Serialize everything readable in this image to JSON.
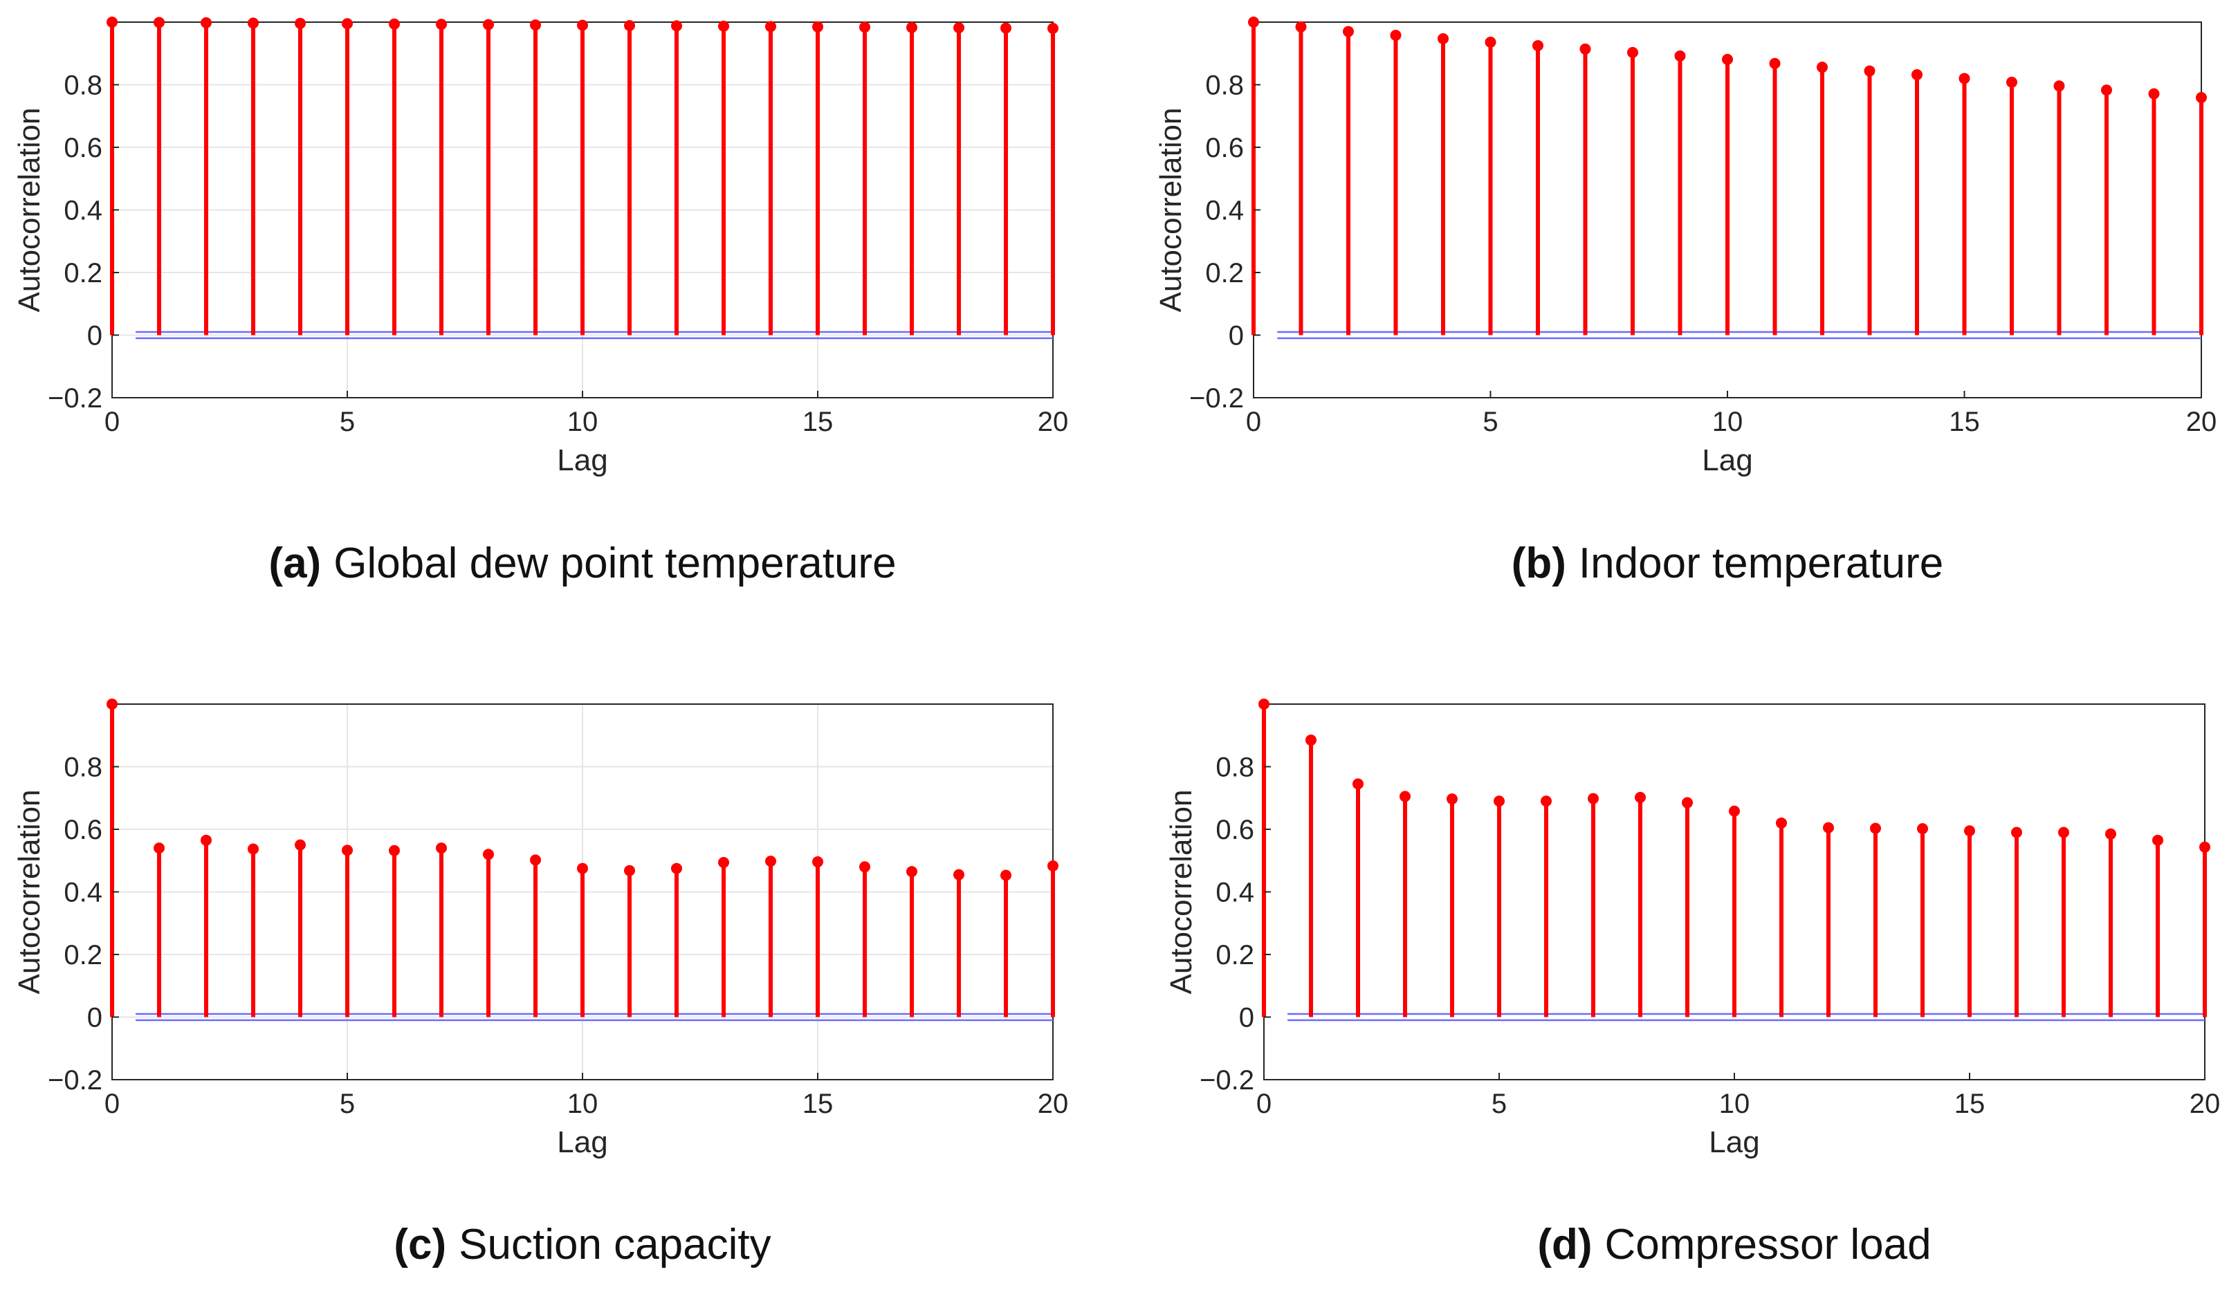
{
  "colors": {
    "stem": "#ff0000",
    "bound": "#6b6bff",
    "grid": "#e6e6e6",
    "axis": "#262626"
  },
  "chart_data": [
    {
      "id": "a",
      "type": "stem",
      "caption_letter": "(a)",
      "caption": "Global dew point temperature",
      "xlabel": "Lag",
      "ylabel": "Autocorrelation",
      "xlim": [
        0,
        20
      ],
      "ylim": [
        -0.2,
        1.0
      ],
      "xticks": [
        "0",
        "5",
        "10",
        "15",
        "20"
      ],
      "yticks": [
        "−0.2",
        "0",
        "0.2",
        "0.4",
        "0.6",
        "0.8"
      ],
      "grid": true,
      "confidence_bound": 0.01,
      "lags": [
        0,
        1,
        2,
        3,
        4,
        5,
        6,
        7,
        8,
        9,
        10,
        11,
        12,
        13,
        14,
        15,
        16,
        17,
        18,
        19,
        20
      ],
      "values": [
        1.0,
        0.999,
        0.998,
        0.997,
        0.996,
        0.995,
        0.994,
        0.993,
        0.992,
        0.991,
        0.99,
        0.989,
        0.988,
        0.987,
        0.986,
        0.985,
        0.984,
        0.983,
        0.982,
        0.981,
        0.98
      ]
    },
    {
      "id": "b",
      "type": "stem",
      "caption_letter": "(b)",
      "caption": "Indoor temperature",
      "xlabel": "Lag",
      "ylabel": "Autocorrelation",
      "xlim": [
        0,
        20
      ],
      "ylim": [
        -0.2,
        1.0
      ],
      "xticks": [
        "0",
        "5",
        "10",
        "15",
        "20"
      ],
      "yticks": [
        "−0.2",
        "0",
        "0.2",
        "0.4",
        "0.6",
        "0.8"
      ],
      "grid": false,
      "confidence_bound": 0.01,
      "lags": [
        0,
        1,
        2,
        3,
        4,
        5,
        6,
        7,
        8,
        9,
        10,
        11,
        12,
        13,
        14,
        15,
        16,
        17,
        18,
        19,
        20
      ],
      "values": [
        1.0,
        0.985,
        0.97,
        0.958,
        0.947,
        0.936,
        0.925,
        0.914,
        0.903,
        0.892,
        0.881,
        0.868,
        0.856,
        0.844,
        0.832,
        0.82,
        0.808,
        0.796,
        0.783,
        0.771,
        0.759
      ]
    },
    {
      "id": "c",
      "type": "stem",
      "caption_letter": "(c)",
      "caption": "Suction capacity",
      "xlabel": "Lag",
      "ylabel": "Autocorrelation",
      "xlim": [
        0,
        20
      ],
      "ylim": [
        -0.2,
        1.0
      ],
      "xticks": [
        "0",
        "5",
        "10",
        "15",
        "20"
      ],
      "yticks": [
        "−0.2",
        "0",
        "0.2",
        "0.4",
        "0.6",
        "0.8"
      ],
      "grid": true,
      "confidence_bound": 0.01,
      "lags": [
        0,
        1,
        2,
        3,
        4,
        5,
        6,
        7,
        8,
        9,
        10,
        11,
        12,
        13,
        14,
        15,
        16,
        17,
        18,
        19,
        20
      ],
      "values": [
        1.0,
        0.54,
        0.565,
        0.537,
        0.55,
        0.533,
        0.532,
        0.54,
        0.52,
        0.502,
        0.475,
        0.468,
        0.475,
        0.494,
        0.498,
        0.496,
        0.48,
        0.465,
        0.455,
        0.453,
        0.483
      ]
    },
    {
      "id": "d",
      "type": "stem",
      "caption_letter": "(d)",
      "caption": "Compressor load",
      "xlabel": "Lag",
      "ylabel": "Autocorrelation",
      "xlim": [
        0,
        20
      ],
      "ylim": [
        -0.2,
        1.0
      ],
      "xticks": [
        "0",
        "5",
        "10",
        "15",
        "20"
      ],
      "yticks": [
        "−0.2",
        "0",
        "0.2",
        "0.4",
        "0.6",
        "0.8"
      ],
      "grid": false,
      "confidence_bound": 0.01,
      "lags": [
        0,
        1,
        2,
        3,
        4,
        5,
        6,
        7,
        8,
        9,
        10,
        11,
        12,
        13,
        14,
        15,
        16,
        17,
        18,
        19,
        20
      ],
      "values": [
        1.0,
        0.885,
        0.745,
        0.705,
        0.697,
        0.69,
        0.69,
        0.698,
        0.702,
        0.685,
        0.658,
        0.62,
        0.605,
        0.603,
        0.602,
        0.595,
        0.59,
        0.59,
        0.585,
        0.565,
        0.543
      ]
    }
  ]
}
